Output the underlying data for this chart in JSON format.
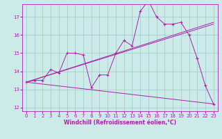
{
  "title": "",
  "xlabel": "Windchill (Refroidissement éolien,°C)",
  "xlim": [
    -0.5,
    23.5
  ],
  "ylim": [
    11.8,
    17.7
  ],
  "yticks": [
    12,
    13,
    14,
    15,
    16,
    17
  ],
  "xticks": [
    0,
    1,
    2,
    3,
    4,
    5,
    6,
    7,
    8,
    9,
    10,
    11,
    12,
    13,
    14,
    15,
    16,
    17,
    18,
    19,
    20,
    21,
    22,
    23
  ],
  "bg_color": "#cceae8",
  "line_color": "#aa22aa",
  "grid_color": "#99cccc",
  "series1_x": [
    0,
    1,
    2,
    3,
    4,
    5,
    6,
    7,
    8,
    9,
    10,
    11,
    12,
    13,
    14,
    15,
    16,
    17,
    18,
    19,
    20,
    21,
    22,
    23
  ],
  "series1_y": [
    13.4,
    13.5,
    13.5,
    14.1,
    13.9,
    15.0,
    15.0,
    14.9,
    13.1,
    13.8,
    13.8,
    15.0,
    15.7,
    15.4,
    17.3,
    17.9,
    17.0,
    16.6,
    16.6,
    16.7,
    16.0,
    14.7,
    13.2,
    12.2
  ],
  "line2_x": [
    0,
    23
  ],
  "line2_y": [
    13.4,
    16.7
  ],
  "line3_x": [
    0,
    23
  ],
  "line3_y": [
    13.4,
    12.2
  ],
  "line4_x": [
    0,
    23
  ],
  "line4_y": [
    13.4,
    16.6
  ],
  "xlabel_fontsize": 5.5,
  "tick_fontsize": 5,
  "linewidth": 0.7,
  "markersize": 2.5
}
